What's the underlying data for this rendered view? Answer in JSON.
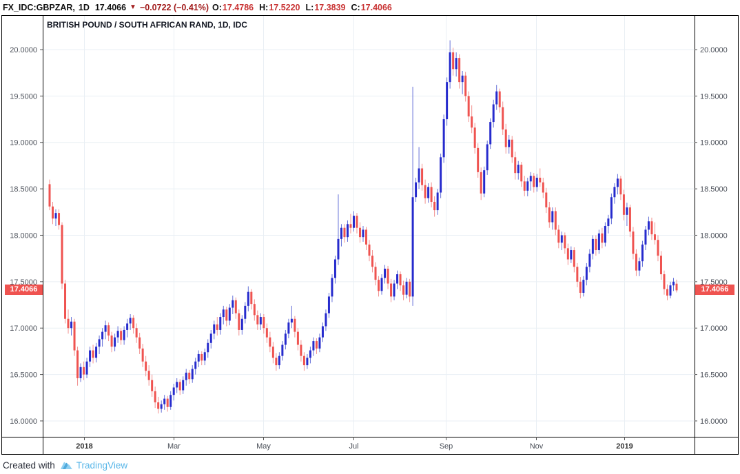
{
  "toolbar": {
    "symbol": "FX_IDC:GBPZAR,",
    "interval": "1D",
    "last_price": "17.4066",
    "direction_icon": "▼",
    "change": "−0.0722 (−0.41%)",
    "o_label": "O:",
    "o_value": "17.4786",
    "h_label": "H:",
    "h_value": "17.5220",
    "l_label": "L:",
    "l_value": "17.3839",
    "c_label": "C:",
    "c_value": "17.4066"
  },
  "pane": {
    "title": "BRITISH POUND / SOUTH AFRICAN RAND, 1D, IDC",
    "price_badge": "17.4066"
  },
  "footer": {
    "created_with": "Created with",
    "brand": "TradingView"
  },
  "colors": {
    "up_body": "#262bcd",
    "up_wick": "#6470d8",
    "down_body": "#ef5350",
    "down_wick": "#f29290",
    "grid": "#e9eff4",
    "frame": "#000000",
    "axis_text": "#4a4f58",
    "badge": "#ef5350",
    "brand_blue": "#58b6e8"
  },
  "chart_data": {
    "type": "candlestick",
    "title": "BRITISH POUND / SOUTH AFRICAN RAND, 1D, IDC",
    "symbol": "GBPZAR",
    "interval": "1D",
    "exchange": "IDC",
    "last_price": 17.4066,
    "y_range": [
      15.829,
      20.371
    ],
    "grid": true,
    "y_ticks": [
      "20.0000",
      "19.5000",
      "19.0000",
      "18.5000",
      "18.0000",
      "17.5000",
      "17.0000",
      "16.5000",
      "16.0000"
    ],
    "x_ticks": [
      {
        "label": "2018",
        "pos": 0.0634,
        "bold": true
      },
      {
        "label": "Mar",
        "pos": 0.2008,
        "bold": false
      },
      {
        "label": "May",
        "pos": 0.3383,
        "bold": false
      },
      {
        "label": "Jul",
        "pos": 0.4767,
        "bold": false
      },
      {
        "label": "Sep",
        "pos": 0.6184,
        "bold": false
      },
      {
        "label": "Nov",
        "pos": 0.7569,
        "bold": false
      },
      {
        "label": "2019",
        "pos": 0.8922,
        "bold": true
      }
    ],
    "candles": [
      [
        18.55,
        18.6,
        18.27,
        18.31
      ],
      [
        18.31,
        18.36,
        18.12,
        18.18
      ],
      [
        18.18,
        18.28,
        18.1,
        18.24
      ],
      [
        18.24,
        18.28,
        18.06,
        18.11
      ],
      [
        18.11,
        18.14,
        17.42,
        17.48
      ],
      [
        17.48,
        17.52,
        17.05,
        17.1
      ],
      [
        17.1,
        17.2,
        16.94,
        17.0
      ],
      [
        17.0,
        17.12,
        16.92,
        17.07
      ],
      [
        17.07,
        17.1,
        16.7,
        16.76
      ],
      [
        16.76,
        16.8,
        16.38,
        16.46
      ],
      [
        16.46,
        16.62,
        16.42,
        16.58
      ],
      [
        16.58,
        16.64,
        16.44,
        16.5
      ],
      [
        16.5,
        16.68,
        16.46,
        16.64
      ],
      [
        16.64,
        16.8,
        16.58,
        16.76
      ],
      [
        16.76,
        16.82,
        16.62,
        16.68
      ],
      [
        16.68,
        16.84,
        16.63,
        16.8
      ],
      [
        16.8,
        16.92,
        16.72,
        16.88
      ],
      [
        16.88,
        17.0,
        16.8,
        16.96
      ],
      [
        16.96,
        17.08,
        16.88,
        17.03
      ],
      [
        17.03,
        17.06,
        16.86,
        16.92
      ],
      [
        16.92,
        16.96,
        16.74,
        16.8
      ],
      [
        16.8,
        16.94,
        16.75,
        16.9
      ],
      [
        16.9,
        17.02,
        16.84,
        16.97
      ],
      [
        16.97,
        17.0,
        16.82,
        16.87
      ],
      [
        16.87,
        17.02,
        16.82,
        16.98
      ],
      [
        16.98,
        17.1,
        16.9,
        17.05
      ],
      [
        17.05,
        17.15,
        16.98,
        17.11
      ],
      [
        17.11,
        17.14,
        16.94,
        17.0
      ],
      [
        17.0,
        17.05,
        16.84,
        16.9
      ],
      [
        16.9,
        16.95,
        16.72,
        16.78
      ],
      [
        16.78,
        16.83,
        16.58,
        16.64
      ],
      [
        16.64,
        16.7,
        16.48,
        16.54
      ],
      [
        16.54,
        16.6,
        16.38,
        16.44
      ],
      [
        16.44,
        16.5,
        16.26,
        16.32
      ],
      [
        16.32,
        16.37,
        16.14,
        16.2
      ],
      [
        16.2,
        16.26,
        16.08,
        16.13
      ],
      [
        16.13,
        16.22,
        16.09,
        16.18
      ],
      [
        16.18,
        16.28,
        16.12,
        16.24
      ],
      [
        16.24,
        16.27,
        16.1,
        16.15
      ],
      [
        16.15,
        16.32,
        16.12,
        16.28
      ],
      [
        16.28,
        16.4,
        16.22,
        16.36
      ],
      [
        16.36,
        16.46,
        16.3,
        16.42
      ],
      [
        16.42,
        16.45,
        16.28,
        16.33
      ],
      [
        16.33,
        16.48,
        16.29,
        16.44
      ],
      [
        16.44,
        16.56,
        16.38,
        16.52
      ],
      [
        16.52,
        16.55,
        16.4,
        16.45
      ],
      [
        16.45,
        16.6,
        16.41,
        16.56
      ],
      [
        16.56,
        16.68,
        16.5,
        16.64
      ],
      [
        16.64,
        16.76,
        16.58,
        16.72
      ],
      [
        16.72,
        16.75,
        16.6,
        16.65
      ],
      [
        16.65,
        16.78,
        16.6,
        16.74
      ],
      [
        16.74,
        16.88,
        16.68,
        16.84
      ],
      [
        16.84,
        16.98,
        16.78,
        16.94
      ],
      [
        16.94,
        17.08,
        16.88,
        17.04
      ],
      [
        17.04,
        17.12,
        16.92,
        16.98
      ],
      [
        16.98,
        17.16,
        16.93,
        17.12
      ],
      [
        17.12,
        17.24,
        17.04,
        17.2
      ],
      [
        17.2,
        17.23,
        17.02,
        17.08
      ],
      [
        17.08,
        17.26,
        17.03,
        17.22
      ],
      [
        17.22,
        17.35,
        17.15,
        17.3
      ],
      [
        17.3,
        17.33,
        17.1,
        17.16
      ],
      [
        17.16,
        17.2,
        16.92,
        16.98
      ],
      [
        16.98,
        17.14,
        16.93,
        17.1
      ],
      [
        17.1,
        17.28,
        17.05,
        17.24
      ],
      [
        17.24,
        17.45,
        17.18,
        17.39
      ],
      [
        17.39,
        17.42,
        17.2,
        17.26
      ],
      [
        17.26,
        17.31,
        17.08,
        17.14
      ],
      [
        17.14,
        17.19,
        16.98,
        17.04
      ],
      [
        17.04,
        17.16,
        16.98,
        17.12
      ],
      [
        17.12,
        17.15,
        16.94,
        17.0
      ],
      [
        17.0,
        17.05,
        16.84,
        16.9
      ],
      [
        16.9,
        16.96,
        16.74,
        16.8
      ],
      [
        16.8,
        16.85,
        16.62,
        16.68
      ],
      [
        16.68,
        16.73,
        16.54,
        16.6
      ],
      [
        16.6,
        16.74,
        16.56,
        16.7
      ],
      [
        16.7,
        16.86,
        16.65,
        16.82
      ],
      [
        16.82,
        16.98,
        16.77,
        16.94
      ],
      [
        16.94,
        17.1,
        16.89,
        17.06
      ],
      [
        17.06,
        17.24,
        17.0,
        17.1
      ],
      [
        17.1,
        17.13,
        16.9,
        16.96
      ],
      [
        16.96,
        17.0,
        16.76,
        16.82
      ],
      [
        16.82,
        16.87,
        16.64,
        16.7
      ],
      [
        16.7,
        16.74,
        16.54,
        16.6
      ],
      [
        16.6,
        16.72,
        16.56,
        16.68
      ],
      [
        16.68,
        16.8,
        16.62,
        16.76
      ],
      [
        16.76,
        16.9,
        16.7,
        16.86
      ],
      [
        16.86,
        16.89,
        16.72,
        16.78
      ],
      [
        16.78,
        16.94,
        16.74,
        16.9
      ],
      [
        16.9,
        17.06,
        16.85,
        17.02
      ],
      [
        17.02,
        17.2,
        16.97,
        17.16
      ],
      [
        17.16,
        17.38,
        17.11,
        17.34
      ],
      [
        17.34,
        17.58,
        17.28,
        17.54
      ],
      [
        17.54,
        17.78,
        17.48,
        17.74
      ],
      [
        17.74,
        18.44,
        17.68,
        17.96
      ],
      [
        17.96,
        18.12,
        17.88,
        18.08
      ],
      [
        18.08,
        18.12,
        17.92,
        17.98
      ],
      [
        17.98,
        18.16,
        17.93,
        18.12
      ],
      [
        18.12,
        18.23,
        18.02,
        18.08
      ],
      [
        18.08,
        18.26,
        18.04,
        18.21
      ],
      [
        18.21,
        18.24,
        18.02,
        18.08
      ],
      [
        18.08,
        18.14,
        17.92,
        17.98
      ],
      [
        17.98,
        18.1,
        17.93,
        18.06
      ],
      [
        18.06,
        18.09,
        17.84,
        17.9
      ],
      [
        17.9,
        17.95,
        17.72,
        17.78
      ],
      [
        17.78,
        17.84,
        17.6,
        17.66
      ],
      [
        17.66,
        17.71,
        17.46,
        17.52
      ],
      [
        17.52,
        17.56,
        17.34,
        17.4
      ],
      [
        17.4,
        17.58,
        17.36,
        17.54
      ],
      [
        17.54,
        17.68,
        17.48,
        17.64
      ],
      [
        17.64,
        17.67,
        17.42,
        17.48
      ],
      [
        17.48,
        17.53,
        17.28,
        17.34
      ],
      [
        17.34,
        17.52,
        17.3,
        17.48
      ],
      [
        17.48,
        17.62,
        17.42,
        17.58
      ],
      [
        17.58,
        17.61,
        17.4,
        17.46
      ],
      [
        17.46,
        17.51,
        17.3,
        17.36
      ],
      [
        17.36,
        17.54,
        17.32,
        17.5
      ],
      [
        17.5,
        17.53,
        17.28,
        17.34
      ],
      [
        17.34,
        19.6,
        17.24,
        18.41
      ],
      [
        18.41,
        18.62,
        18.36,
        18.57
      ],
      [
        18.57,
        18.95,
        18.5,
        18.72
      ],
      [
        18.72,
        18.77,
        18.48,
        18.54
      ],
      [
        18.54,
        18.6,
        18.34,
        18.4
      ],
      [
        18.4,
        18.56,
        18.35,
        18.52
      ],
      [
        18.52,
        18.57,
        18.3,
        18.36
      ],
      [
        18.36,
        18.42,
        18.2,
        18.27
      ],
      [
        18.27,
        18.5,
        18.22,
        18.46
      ],
      [
        18.46,
        18.88,
        18.4,
        18.84
      ],
      [
        18.84,
        19.3,
        18.78,
        19.25
      ],
      [
        19.25,
        19.7,
        19.18,
        19.65
      ],
      [
        19.65,
        20.1,
        19.58,
        19.97
      ],
      [
        19.97,
        20.02,
        19.72,
        19.79
      ],
      [
        19.79,
        19.97,
        19.71,
        19.91
      ],
      [
        19.91,
        19.95,
        19.58,
        19.65
      ],
      [
        19.65,
        19.77,
        19.52,
        19.72
      ],
      [
        19.72,
        19.76,
        19.44,
        19.5
      ],
      [
        19.5,
        19.55,
        19.22,
        19.28
      ],
      [
        19.28,
        19.4,
        19.1,
        19.16
      ],
      [
        19.16,
        19.21,
        18.88,
        18.94
      ],
      [
        18.94,
        18.99,
        18.62,
        18.68
      ],
      [
        18.68,
        18.73,
        18.38,
        18.45
      ],
      [
        18.45,
        18.74,
        18.41,
        18.7
      ],
      [
        18.7,
        19.02,
        18.65,
        18.98
      ],
      [
        18.98,
        19.26,
        18.93,
        19.22
      ],
      [
        19.22,
        19.46,
        19.16,
        19.41
      ],
      [
        19.41,
        19.62,
        19.35,
        19.55
      ],
      [
        19.55,
        19.58,
        19.32,
        19.38
      ],
      [
        19.38,
        19.44,
        19.08,
        19.14
      ],
      [
        19.14,
        19.2,
        18.88,
        18.95
      ],
      [
        18.95,
        19.08,
        18.88,
        19.03
      ],
      [
        19.03,
        19.07,
        18.78,
        18.84
      ],
      [
        18.84,
        18.9,
        18.6,
        18.67
      ],
      [
        18.67,
        18.8,
        18.6,
        18.76
      ],
      [
        18.76,
        18.79,
        18.52,
        18.58
      ],
      [
        18.58,
        18.64,
        18.42,
        18.48
      ],
      [
        18.48,
        18.62,
        18.42,
        18.58
      ],
      [
        18.58,
        18.68,
        18.48,
        18.64
      ],
      [
        18.64,
        18.67,
        18.46,
        18.52
      ],
      [
        18.52,
        18.66,
        18.47,
        18.62
      ],
      [
        18.62,
        18.72,
        18.52,
        18.57
      ],
      [
        18.57,
        18.62,
        18.4,
        18.46
      ],
      [
        18.46,
        18.51,
        18.24,
        18.3
      ],
      [
        18.3,
        18.36,
        18.08,
        18.14
      ],
      [
        18.14,
        18.3,
        18.06,
        18.26
      ],
      [
        18.26,
        18.3,
        18.0,
        18.06
      ],
      [
        18.06,
        18.11,
        17.86,
        17.92
      ],
      [
        17.92,
        18.04,
        17.84,
        18.0
      ],
      [
        18.0,
        18.03,
        17.8,
        17.86
      ],
      [
        17.86,
        17.91,
        17.68,
        17.74
      ],
      [
        17.74,
        17.88,
        17.7,
        17.84
      ],
      [
        17.84,
        17.87,
        17.6,
        17.66
      ],
      [
        17.66,
        17.7,
        17.44,
        17.5
      ],
      [
        17.5,
        17.55,
        17.32,
        17.38
      ],
      [
        17.38,
        17.56,
        17.34,
        17.52
      ],
      [
        17.52,
        17.7,
        17.46,
        17.66
      ],
      [
        17.66,
        17.85,
        17.6,
        17.8
      ],
      [
        17.8,
        18.0,
        17.74,
        17.96
      ],
      [
        17.96,
        18.0,
        17.78,
        17.84
      ],
      [
        17.84,
        18.06,
        17.8,
        18.02
      ],
      [
        18.02,
        18.08,
        17.86,
        17.92
      ],
      [
        17.92,
        18.14,
        17.88,
        18.1
      ],
      [
        18.1,
        18.22,
        18.02,
        18.18
      ],
      [
        18.18,
        18.45,
        18.12,
        18.41
      ],
      [
        18.41,
        18.56,
        18.34,
        18.52
      ],
      [
        18.52,
        18.66,
        18.44,
        18.61
      ],
      [
        18.61,
        18.64,
        18.38,
        18.44
      ],
      [
        18.44,
        18.49,
        18.16,
        18.22
      ],
      [
        18.22,
        18.35,
        18.1,
        18.3
      ],
      [
        18.3,
        18.33,
        17.98,
        18.04
      ],
      [
        18.04,
        18.09,
        17.74,
        17.8
      ],
      [
        17.8,
        17.85,
        17.56,
        17.62
      ],
      [
        17.62,
        17.76,
        17.56,
        17.72
      ],
      [
        17.72,
        17.94,
        17.66,
        17.9
      ],
      [
        17.9,
        18.1,
        17.84,
        18.06
      ],
      [
        18.06,
        18.2,
        18.0,
        18.15
      ],
      [
        18.15,
        18.19,
        17.95,
        18.01
      ],
      [
        18.01,
        18.14,
        17.9,
        17.95
      ],
      [
        17.95,
        18.0,
        17.72,
        17.78
      ],
      [
        17.78,
        17.83,
        17.52,
        17.58
      ],
      [
        17.58,
        17.62,
        17.36,
        17.42
      ],
      [
        17.42,
        17.47,
        17.3,
        17.35
      ],
      [
        17.35,
        17.5,
        17.32,
        17.46
      ],
      [
        17.46,
        17.54,
        17.4,
        17.5
      ],
      [
        17.4786,
        17.522,
        17.3839,
        17.4066
      ]
    ]
  }
}
